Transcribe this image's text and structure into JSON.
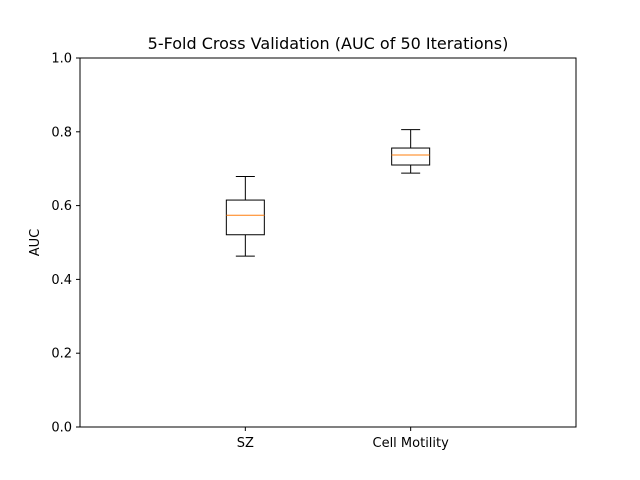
{
  "chart_data": {
    "type": "boxplot",
    "title": "5-Fold Cross Validation (AUC of 50 Iterations)",
    "xlabel": "",
    "ylabel": "AUC",
    "ylim": [
      0.0,
      1.0
    ],
    "yticks": [
      0.0,
      0.2,
      0.4,
      0.6,
      0.8,
      1.0
    ],
    "ytick_labels": [
      "0.0",
      "0.2",
      "0.4",
      "0.6",
      "0.8",
      "1.0"
    ],
    "categories": [
      "SZ",
      "Cell Motility"
    ],
    "boxes": [
      {
        "category": "SZ",
        "whisker_low": 0.463,
        "q1": 0.521,
        "median": 0.574,
        "q3": 0.615,
        "whisker_high": 0.679
      },
      {
        "category": "Cell Motility",
        "whisker_low": 0.688,
        "q1": 0.71,
        "median": 0.737,
        "q3": 0.756,
        "whisker_high": 0.806
      }
    ],
    "grid": false,
    "colors": {
      "box": "#000000",
      "median": "#ff7f0e",
      "axes": "#000000"
    }
  }
}
